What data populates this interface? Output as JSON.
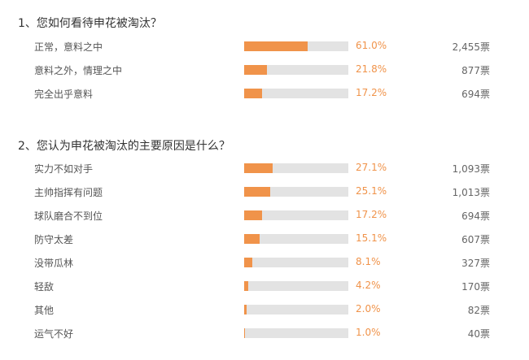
{
  "polls": [
    {
      "question": "1、您如何看待申花被淘汰？",
      "options": [
        {
          "label": "正常，意料之中",
          "percent_text": "61.0%",
          "percent": 61.0,
          "votes": "2,455票"
        },
        {
          "label": "意料之外，情理之中",
          "percent_text": "21.8%",
          "percent": 21.8,
          "votes": "877票"
        },
        {
          "label": "完全出乎意料",
          "percent_text": "17.2%",
          "percent": 17.2,
          "votes": "694票"
        }
      ]
    },
    {
      "question": "2、您认为申花被淘汰的主要原因是什么？",
      "options": [
        {
          "label": "实力不如对手",
          "percent_text": "27.1%",
          "percent": 27.1,
          "votes": "1,093票"
        },
        {
          "label": "主帅指挥有问题",
          "percent_text": "25.1%",
          "percent": 25.1,
          "votes": "1,013票"
        },
        {
          "label": "球队磨合不到位",
          "percent_text": "17.2%",
          "percent": 17.2,
          "votes": "694票"
        },
        {
          "label": "防守太差",
          "percent_text": "15.1%",
          "percent": 15.1,
          "votes": "607票"
        },
        {
          "label": "没带瓜林",
          "percent_text": "8.1%",
          "percent": 8.1,
          "votes": "327票"
        },
        {
          "label": "轻敌",
          "percent_text": "4.2%",
          "percent": 4.2,
          "votes": "170票"
        },
        {
          "label": "其他",
          "percent_text": "2.0%",
          "percent": 2.0,
          "votes": "82票"
        },
        {
          "label": "运气不好",
          "percent_text": "1.0%",
          "percent": 1.0,
          "votes": "40票"
        }
      ]
    }
  ],
  "colors": {
    "bar_fill": "#f0934a",
    "bar_track": "#e3e3e3",
    "percent_text": "#f0934a"
  }
}
